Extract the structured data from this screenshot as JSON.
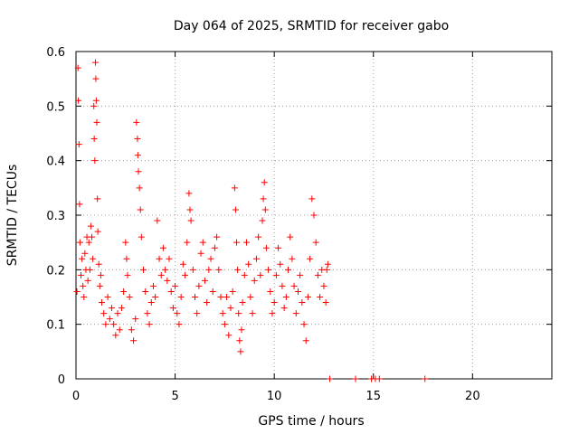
{
  "chart_data": {
    "type": "scatter",
    "title": "Day 064 of 2025, SRMTID for receiver gabo",
    "xlabel": "GPS time / hours",
    "ylabel": "SRMTID / TECUs",
    "xlim": [
      0,
      24
    ],
    "ylim": [
      0,
      0.6
    ],
    "xticks": [
      0,
      5,
      10,
      15,
      20
    ],
    "yticks": [
      0,
      0.1,
      0.2,
      0.3,
      0.4,
      0.5,
      0.6
    ],
    "grid": true,
    "marker": "plus",
    "color": "#ff0000",
    "series": [
      {
        "name": "SRMTID",
        "points": [
          [
            0.05,
            0.16
          ],
          [
            0.1,
            0.57
          ],
          [
            0.12,
            0.51
          ],
          [
            0.15,
            0.43
          ],
          [
            0.18,
            0.32
          ],
          [
            0.2,
            0.25
          ],
          [
            0.25,
            0.19
          ],
          [
            0.3,
            0.22
          ],
          [
            0.35,
            0.17
          ],
          [
            0.4,
            0.15
          ],
          [
            0.45,
            0.23
          ],
          [
            0.5,
            0.2
          ],
          [
            0.55,
            0.26
          ],
          [
            0.6,
            0.18
          ],
          [
            0.65,
            0.25
          ],
          [
            0.7,
            0.2
          ],
          [
            0.75,
            0.28
          ],
          [
            0.8,
            0.26
          ],
          [
            0.85,
            0.22
          ],
          [
            0.9,
            0.5
          ],
          [
            0.92,
            0.44
          ],
          [
            0.95,
            0.4
          ],
          [
            0.98,
            0.58
          ],
          [
            1.0,
            0.55
          ],
          [
            1.02,
            0.51
          ],
          [
            1.05,
            0.47
          ],
          [
            1.08,
            0.33
          ],
          [
            1.1,
            0.27
          ],
          [
            1.15,
            0.21
          ],
          [
            1.2,
            0.17
          ],
          [
            1.25,
            0.19
          ],
          [
            1.3,
            0.14
          ],
          [
            1.4,
            0.12
          ],
          [
            1.5,
            0.1
          ],
          [
            1.6,
            0.15
          ],
          [
            1.7,
            0.11
          ],
          [
            1.8,
            0.13
          ],
          [
            1.9,
            0.1
          ],
          [
            2.0,
            0.08
          ],
          [
            2.1,
            0.12
          ],
          [
            2.2,
            0.09
          ],
          [
            2.3,
            0.13
          ],
          [
            2.4,
            0.16
          ],
          [
            2.5,
            0.25
          ],
          [
            2.55,
            0.22
          ],
          [
            2.6,
            0.19
          ],
          [
            2.7,
            0.15
          ],
          [
            2.8,
            0.09
          ],
          [
            2.9,
            0.07
          ],
          [
            3.0,
            0.11
          ],
          [
            3.05,
            0.47
          ],
          [
            3.1,
            0.44
          ],
          [
            3.12,
            0.41
          ],
          [
            3.15,
            0.38
          ],
          [
            3.2,
            0.35
          ],
          [
            3.25,
            0.31
          ],
          [
            3.3,
            0.26
          ],
          [
            3.4,
            0.2
          ],
          [
            3.5,
            0.16
          ],
          [
            3.6,
            0.12
          ],
          [
            3.7,
            0.1
          ],
          [
            3.8,
            0.14
          ],
          [
            3.9,
            0.17
          ],
          [
            4.0,
            0.15
          ],
          [
            4.1,
            0.29
          ],
          [
            4.2,
            0.22
          ],
          [
            4.3,
            0.19
          ],
          [
            4.4,
            0.24
          ],
          [
            4.5,
            0.2
          ],
          [
            4.6,
            0.18
          ],
          [
            4.7,
            0.22
          ],
          [
            4.8,
            0.16
          ],
          [
            4.9,
            0.13
          ],
          [
            5.0,
            0.17
          ],
          [
            5.1,
            0.12
          ],
          [
            5.2,
            0.1
          ],
          [
            5.3,
            0.15
          ],
          [
            5.4,
            0.21
          ],
          [
            5.5,
            0.19
          ],
          [
            5.6,
            0.25
          ],
          [
            5.7,
            0.34
          ],
          [
            5.75,
            0.31
          ],
          [
            5.8,
            0.29
          ],
          [
            5.9,
            0.2
          ],
          [
            6.0,
            0.15
          ],
          [
            6.1,
            0.12
          ],
          [
            6.2,
            0.17
          ],
          [
            6.3,
            0.23
          ],
          [
            6.4,
            0.25
          ],
          [
            6.5,
            0.18
          ],
          [
            6.6,
            0.14
          ],
          [
            6.7,
            0.2
          ],
          [
            6.8,
            0.22
          ],
          [
            6.9,
            0.16
          ],
          [
            7.0,
            0.24
          ],
          [
            7.1,
            0.26
          ],
          [
            7.2,
            0.2
          ],
          [
            7.3,
            0.15
          ],
          [
            7.4,
            0.12
          ],
          [
            7.5,
            0.1
          ],
          [
            7.6,
            0.15
          ],
          [
            7.7,
            0.08
          ],
          [
            7.8,
            0.13
          ],
          [
            7.9,
            0.16
          ],
          [
            8.0,
            0.35
          ],
          [
            8.05,
            0.31
          ],
          [
            8.1,
            0.25
          ],
          [
            8.15,
            0.2
          ],
          [
            8.2,
            0.12
          ],
          [
            8.25,
            0.07
          ],
          [
            8.3,
            0.05
          ],
          [
            8.35,
            0.09
          ],
          [
            8.4,
            0.14
          ],
          [
            8.5,
            0.19
          ],
          [
            8.6,
            0.25
          ],
          [
            8.7,
            0.21
          ],
          [
            8.8,
            0.15
          ],
          [
            8.9,
            0.12
          ],
          [
            9.0,
            0.18
          ],
          [
            9.1,
            0.22
          ],
          [
            9.2,
            0.26
          ],
          [
            9.3,
            0.19
          ],
          [
            9.4,
            0.29
          ],
          [
            9.45,
            0.33
          ],
          [
            9.5,
            0.36
          ],
          [
            9.55,
            0.31
          ],
          [
            9.6,
            0.24
          ],
          [
            9.7,
            0.2
          ],
          [
            9.8,
            0.16
          ],
          [
            9.9,
            0.12
          ],
          [
            10.0,
            0.14
          ],
          [
            10.1,
            0.19
          ],
          [
            10.2,
            0.24
          ],
          [
            10.3,
            0.21
          ],
          [
            10.4,
            0.17
          ],
          [
            10.5,
            0.13
          ],
          [
            10.6,
            0.15
          ],
          [
            10.7,
            0.2
          ],
          [
            10.8,
            0.26
          ],
          [
            10.9,
            0.22
          ],
          [
            11.0,
            0.17
          ],
          [
            11.1,
            0.12
          ],
          [
            11.2,
            0.16
          ],
          [
            11.3,
            0.19
          ],
          [
            11.4,
            0.14
          ],
          [
            11.5,
            0.1
          ],
          [
            11.6,
            0.07
          ],
          [
            11.7,
            0.15
          ],
          [
            11.8,
            0.22
          ],
          [
            11.9,
            0.33
          ],
          [
            12.0,
            0.3
          ],
          [
            12.1,
            0.25
          ],
          [
            12.2,
            0.19
          ],
          [
            12.3,
            0.15
          ],
          [
            12.4,
            0.2
          ],
          [
            12.5,
            0.17
          ],
          [
            12.6,
            0.14
          ],
          [
            12.65,
            0.2
          ],
          [
            12.7,
            0.21
          ],
          [
            12.8,
            0.0
          ],
          [
            14.1,
            0.0
          ],
          [
            14.9,
            0.0
          ],
          [
            15.1,
            0.0
          ],
          [
            15.3,
            0.0
          ],
          [
            17.6,
            0.0
          ]
        ]
      }
    ]
  }
}
